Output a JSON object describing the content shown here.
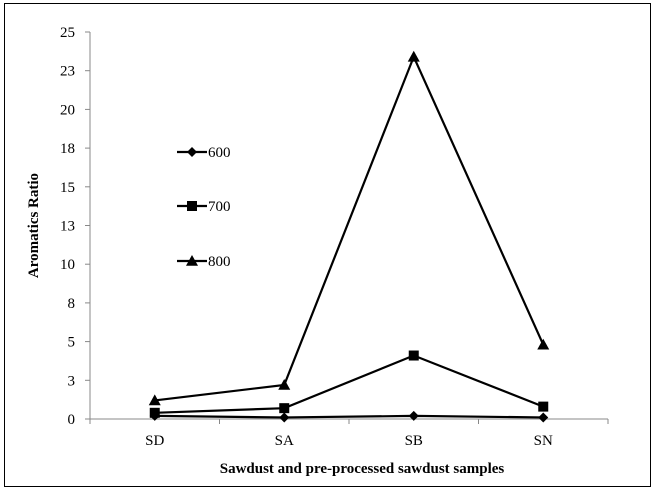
{
  "chart_data": {
    "type": "line",
    "title": "",
    "xlabel": "Sawdust and pre-processed sawdust samples",
    "ylabel": "Aromatics Ratio",
    "categories": [
      "SD",
      "SA",
      "SB",
      "SN"
    ],
    "ylim": [
      0,
      25
    ],
    "y_ticks": [
      "0",
      "3",
      "5",
      "8",
      "10",
      "13",
      "15",
      "18",
      "20",
      "23",
      "25"
    ],
    "grid": false,
    "legend_position": "left-middle",
    "series": [
      {
        "name": "600",
        "marker": "diamond",
        "values": [
          0.2,
          0.1,
          0.2,
          0.1
        ]
      },
      {
        "name": "700",
        "marker": "square",
        "values": [
          0.4,
          0.7,
          4.1,
          0.8
        ]
      },
      {
        "name": "800",
        "marker": "triangle",
        "values": [
          1.2,
          2.2,
          23.4,
          4.8
        ]
      }
    ],
    "line_color": "#000000"
  }
}
